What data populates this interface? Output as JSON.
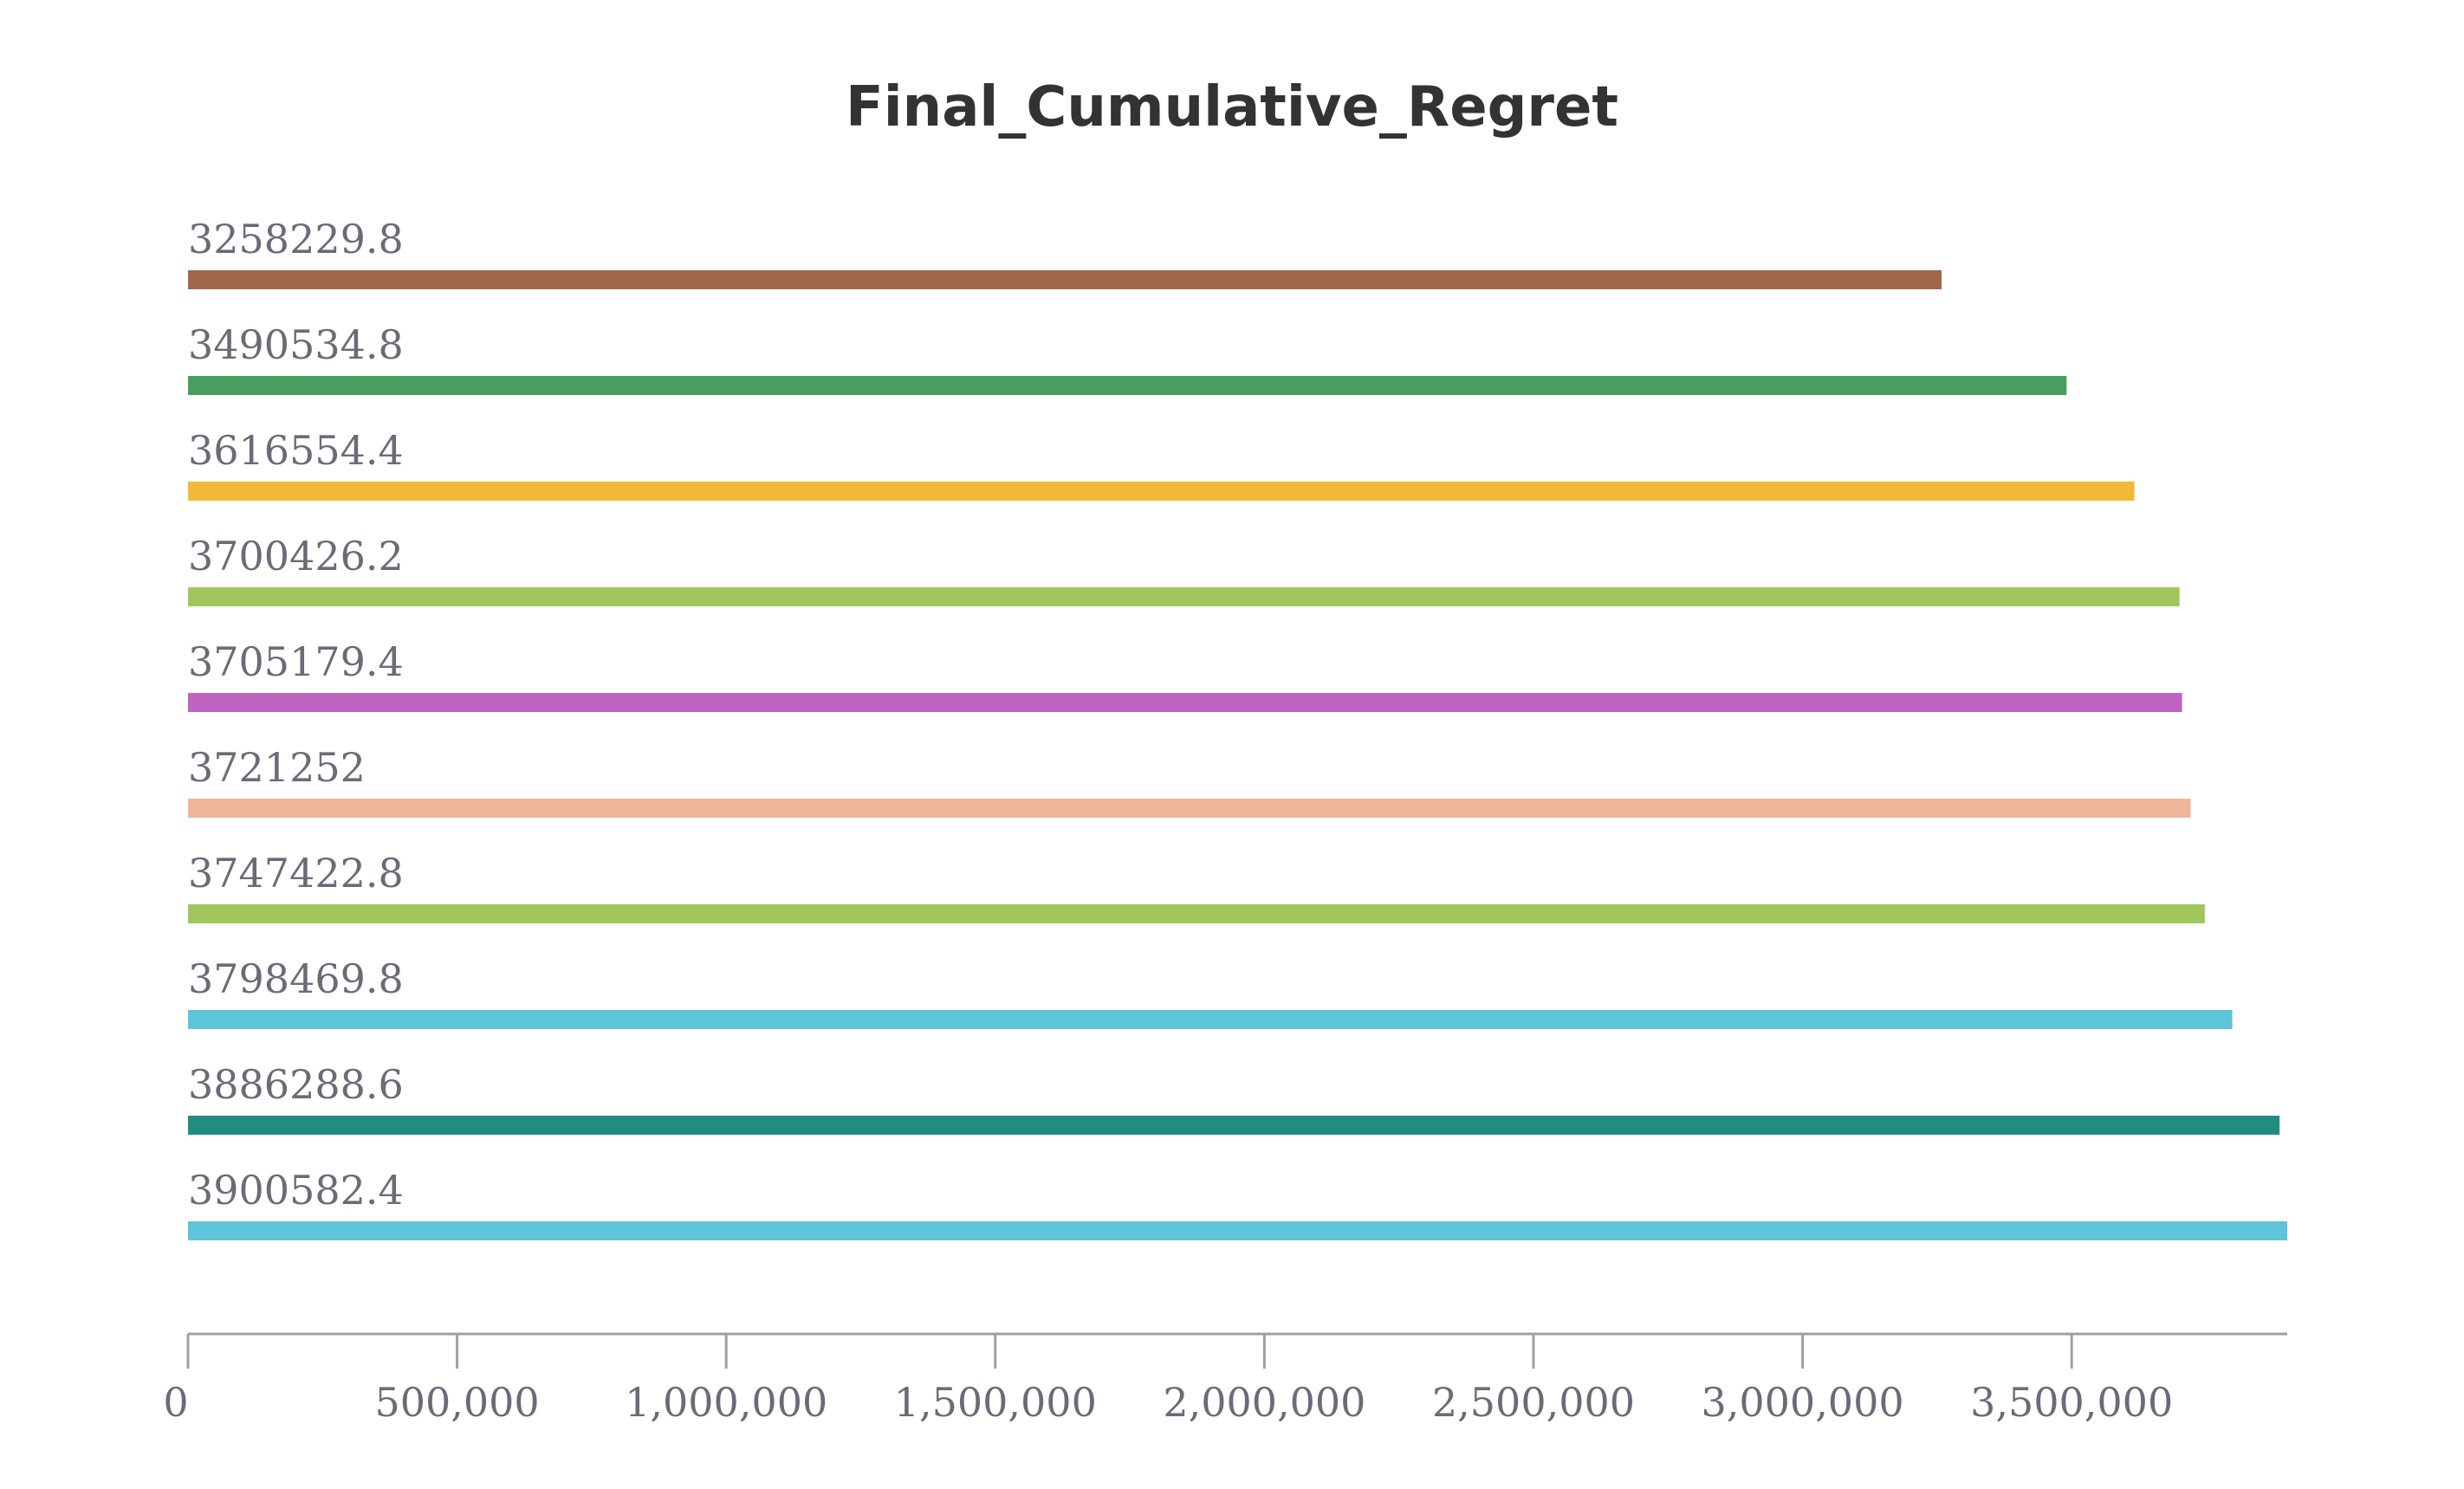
{
  "chart_data": {
    "type": "bar",
    "orientation": "horizontal",
    "title": "Final_Cumulative_Regret",
    "xlabel": "",
    "ylabel": "",
    "xlim": [
      0,
      3900582.4
    ],
    "grid": false,
    "legend": "none",
    "bars": [
      {
        "value": 3258229.8,
        "label": "3258229.8",
        "color": "#a0674b"
      },
      {
        "value": 3490534.8,
        "label": "3490534.8",
        "color": "#479e5f"
      },
      {
        "value": 3616554.4,
        "label": "3616554.4",
        "color": "#f0b93a"
      },
      {
        "value": 3700426.2,
        "label": "3700426.2",
        "color": "#a0c65e"
      },
      {
        "value": 3705179.4,
        "label": "3705179.4",
        "color": "#c062c2"
      },
      {
        "value": 3721252,
        "label": "3721252",
        "color": "#efb69b"
      },
      {
        "value": 3747422.8,
        "label": "3747422.8",
        "color": "#a0c65e"
      },
      {
        "value": 3798469.8,
        "label": "3798469.8",
        "color": "#5fc3da"
      },
      {
        "value": 3886288.6,
        "label": "3886288.6",
        "color": "#218c80"
      },
      {
        "value": 3900582.4,
        "label": "3900582.4",
        "color": "#5fc3da"
      }
    ],
    "x_ticks": [
      {
        "value": 0,
        "label": "0"
      },
      {
        "value": 500000,
        "label": "500,000"
      },
      {
        "value": 1000000,
        "label": "1,000,000"
      },
      {
        "value": 1500000,
        "label": "1,500,000"
      },
      {
        "value": 2000000,
        "label": "2,000,000"
      },
      {
        "value": 2500000,
        "label": "2,500,000"
      },
      {
        "value": 3000000,
        "label": "3,000,000"
      },
      {
        "value": 3500000,
        "label": "3,500,000"
      }
    ]
  }
}
